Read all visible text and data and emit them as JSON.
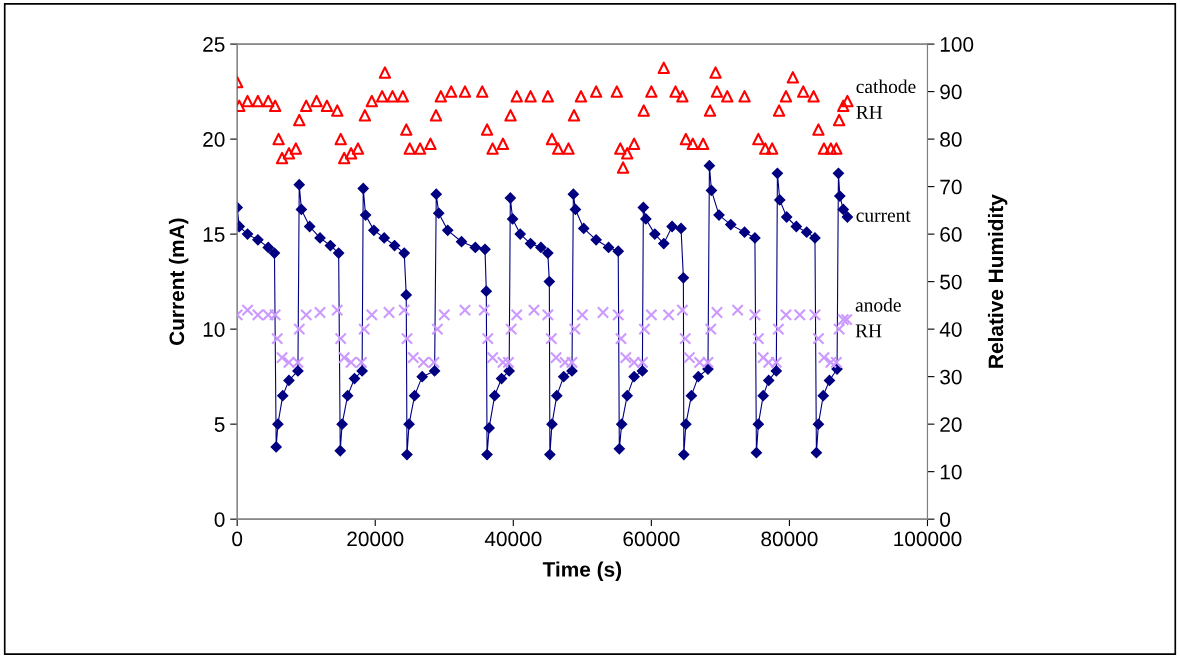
{
  "chart_data": {
    "type": "scatter",
    "xlabel": "Time (s)",
    "ylabel": "Current (mA)",
    "y2label": "Relative Humidity",
    "xlim": [
      0,
      100000
    ],
    "xticks": [
      0,
      20000,
      40000,
      60000,
      80000,
      100000
    ],
    "ylim": [
      0,
      25
    ],
    "yticks": [
      0,
      5,
      10,
      15,
      20,
      25
    ],
    "y2lim": [
      0,
      100
    ],
    "y2ticks": [
      0,
      10,
      20,
      30,
      40,
      50,
      60,
      70,
      80,
      90,
      100
    ],
    "grid": false,
    "legend": false,
    "series": [
      {
        "name": "cathode RH",
        "axis": "y2",
        "color": "#ff0000",
        "marker": "triangle",
        "x": [
          0,
          300,
          1500,
          3000,
          4500,
          5500,
          6000,
          6500,
          7500,
          8500,
          9000,
          10000,
          11500,
          13000,
          14500,
          15000,
          15500,
          16500,
          17500,
          18500,
          19500,
          21000,
          21400,
          22500,
          24000,
          24500,
          25000,
          26500,
          28000,
          28800,
          29500,
          31000,
          33000,
          35500,
          36200,
          37000,
          38500,
          39600,
          40500,
          42500,
          45000,
          45600,
          46500,
          48000,
          48800,
          49800,
          52000,
          55000,
          55500,
          55900,
          56500,
          57500,
          58900,
          60000,
          61800,
          63500,
          64500,
          65000,
          66000,
          67500,
          68500,
          69300,
          69500,
          71000,
          73500,
          75500,
          76500,
          77500,
          78500,
          79500,
          80500,
          82000,
          83500,
          84200,
          85000,
          86000,
          86800,
          87200,
          87800,
          88400
        ],
        "values": [
          92,
          87,
          88,
          88,
          88,
          87,
          80,
          76,
          77,
          78,
          84,
          87,
          88,
          87,
          86,
          80,
          76,
          77,
          78,
          85,
          88,
          89,
          94,
          89,
          89,
          82,
          78,
          78,
          79,
          85,
          89,
          90,
          90,
          90,
          82,
          78,
          79,
          85,
          89,
          89,
          89,
          80,
          78,
          78,
          85,
          89,
          90,
          90,
          78,
          74,
          77,
          79,
          86,
          90,
          95,
          90,
          89,
          80,
          79,
          79,
          86,
          94,
          90,
          89,
          89,
          80,
          78,
          78,
          86,
          89,
          93,
          90,
          89,
          82,
          78,
          78,
          78,
          84,
          87,
          88
        ]
      },
      {
        "name": "current",
        "type": "line",
        "axis": "y",
        "color": "#000080",
        "marker": "diamond",
        "line_style": "solid",
        "x": [
          0,
          300,
          1500,
          3000,
          4500,
          5400,
          5650,
          5900,
          6600,
          7500,
          8800,
          8990,
          9300,
          10500,
          12000,
          13500,
          14700,
          14930,
          15200,
          16000,
          17000,
          18100,
          18260,
          18600,
          19800,
          21300,
          22800,
          24200,
          24490,
          24600,
          24900,
          25700,
          26800,
          28600,
          28840,
          29200,
          30500,
          32500,
          34500,
          35900,
          36090,
          36200,
          36500,
          37300,
          38300,
          39400,
          39570,
          39900,
          41000,
          42500,
          44000,
          45000,
          45220,
          45300,
          45600,
          46300,
          47300,
          48500,
          48700,
          49000,
          50200,
          52000,
          53800,
          55200,
          55360,
          55700,
          56500,
          57500,
          58700,
          58840,
          59200,
          60500,
          61800,
          63000,
          64300,
          64640,
          64700,
          65000,
          65800,
          66800,
          68200,
          68410,
          68700,
          69800,
          71500,
          73500,
          75000,
          75220,
          75500,
          76200,
          77000,
          78100,
          78260,
          78600,
          79600,
          81000,
          82500,
          83700,
          83910,
          84200,
          84900,
          85800,
          86900,
          87100,
          87300,
          87800,
          88400
        ],
        "values": [
          16.4,
          15.4,
          15.0,
          14.7,
          14.3,
          14.0,
          3.8,
          5.0,
          6.5,
          7.3,
          7.8,
          17.6,
          16.3,
          15.4,
          14.8,
          14.4,
          14.0,
          3.6,
          5.0,
          6.5,
          7.4,
          7.8,
          17.4,
          16.0,
          15.2,
          14.8,
          14.4,
          14.0,
          11.8,
          3.4,
          5.0,
          6.5,
          7.5,
          7.8,
          17.1,
          16.1,
          15.2,
          14.6,
          14.3,
          14.2,
          12.0,
          3.4,
          4.8,
          6.5,
          7.4,
          7.8,
          16.9,
          15.8,
          15.0,
          14.5,
          14.3,
          14.0,
          12.5,
          3.4,
          5.0,
          6.5,
          7.5,
          7.8,
          17.1,
          16.3,
          15.3,
          14.7,
          14.3,
          14.1,
          3.7,
          5.0,
          6.5,
          7.5,
          7.8,
          16.4,
          15.8,
          15.0,
          14.5,
          15.4,
          15.3,
          12.7,
          3.4,
          5.0,
          6.5,
          7.5,
          7.9,
          18.6,
          17.3,
          16.0,
          15.5,
          15.1,
          14.8,
          3.5,
          5.0,
          6.5,
          7.3,
          7.8,
          18.2,
          16.8,
          15.9,
          15.4,
          15.1,
          14.8,
          3.5,
          5.0,
          6.5,
          7.3,
          7.9,
          18.2,
          17.0,
          16.3,
          15.9
        ]
      },
      {
        "name": "anode RH",
        "axis": "y2",
        "color": "#cc99ff",
        "marker": "cross",
        "x": [
          0,
          1500,
          3000,
          4500,
          5500,
          5800,
          6500,
          7500,
          8800,
          9000,
          10000,
          12000,
          14500,
          15000,
          15500,
          16500,
          18000,
          18400,
          19500,
          22000,
          24200,
          24600,
          25500,
          27000,
          28500,
          29000,
          30000,
          33000,
          35800,
          36300,
          37000,
          38500,
          39300,
          39700,
          40500,
          43000,
          45000,
          45500,
          46200,
          47500,
          48500,
          48900,
          50000,
          53000,
          55200,
          55600,
          56300,
          57500,
          58700,
          59000,
          60000,
          62500,
          64500,
          64900,
          65500,
          67000,
          68200,
          68600,
          69500,
          72500,
          75000,
          75500,
          76200,
          77000,
          78100,
          78400,
          79500,
          81500,
          83700,
          84200,
          85000,
          86000,
          86800,
          87200,
          87800,
          88300
        ],
        "values": [
          43,
          44,
          43,
          43,
          43,
          38,
          34,
          33,
          33,
          40,
          43,
          43.5,
          44,
          38,
          34,
          33,
          33,
          40,
          43,
          43.5,
          44,
          38,
          34,
          33,
          33,
          40,
          43,
          44,
          44,
          38,
          34,
          33,
          33,
          40,
          43,
          44,
          43,
          38,
          34,
          33,
          33,
          40,
          43,
          43.5,
          43,
          38,
          34,
          33,
          33,
          40,
          43,
          43,
          44,
          38,
          34,
          33,
          33,
          40,
          43.5,
          44,
          43,
          38,
          34,
          33,
          33,
          40,
          43,
          43,
          43,
          38,
          34,
          33,
          33,
          40,
          42,
          42
        ]
      }
    ]
  }
}
